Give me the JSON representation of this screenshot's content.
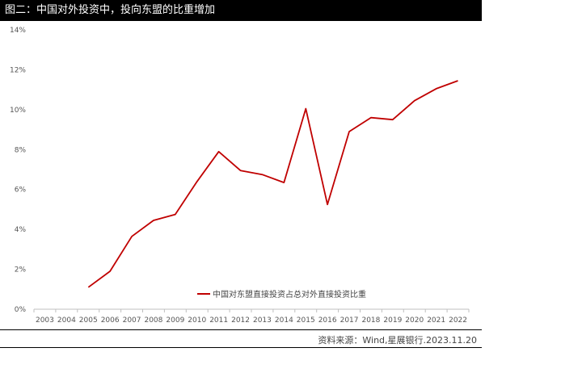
{
  "title": "图二：中国对外投资中，投向东盟的比重增加",
  "source": "资料来源：Wind,星展银行.2023.11.20",
  "chart_data": {
    "type": "line",
    "title": "图二：中国对外投资中，投向东盟的比重增加",
    "xlabel": "",
    "ylabel": "",
    "categories": [
      "2003",
      "2004",
      "2005",
      "2006",
      "2007",
      "2008",
      "2009",
      "2010",
      "2011",
      "2012",
      "2013",
      "2014",
      "2015",
      "2016",
      "2017",
      "2018",
      "2019",
      "2020",
      "2021",
      "2022"
    ],
    "y_ticks": [
      "0%",
      "2%",
      "4%",
      "6%",
      "8%",
      "10%",
      "12%",
      "14%"
    ],
    "ylim": [
      0,
      14
    ],
    "grid": false,
    "legend_position": "bottom-center",
    "series": [
      {
        "name": "中国对东盟直接投资占总对外直接投资比重",
        "color": "#c00000",
        "values": [
          null,
          null,
          1.1,
          1.9,
          3.65,
          4.45,
          4.75,
          6.4,
          7.9,
          6.95,
          6.75,
          6.35,
          10.05,
          5.25,
          8.9,
          9.6,
          9.5,
          10.45,
          11.05,
          11.45
        ]
      }
    ]
  }
}
